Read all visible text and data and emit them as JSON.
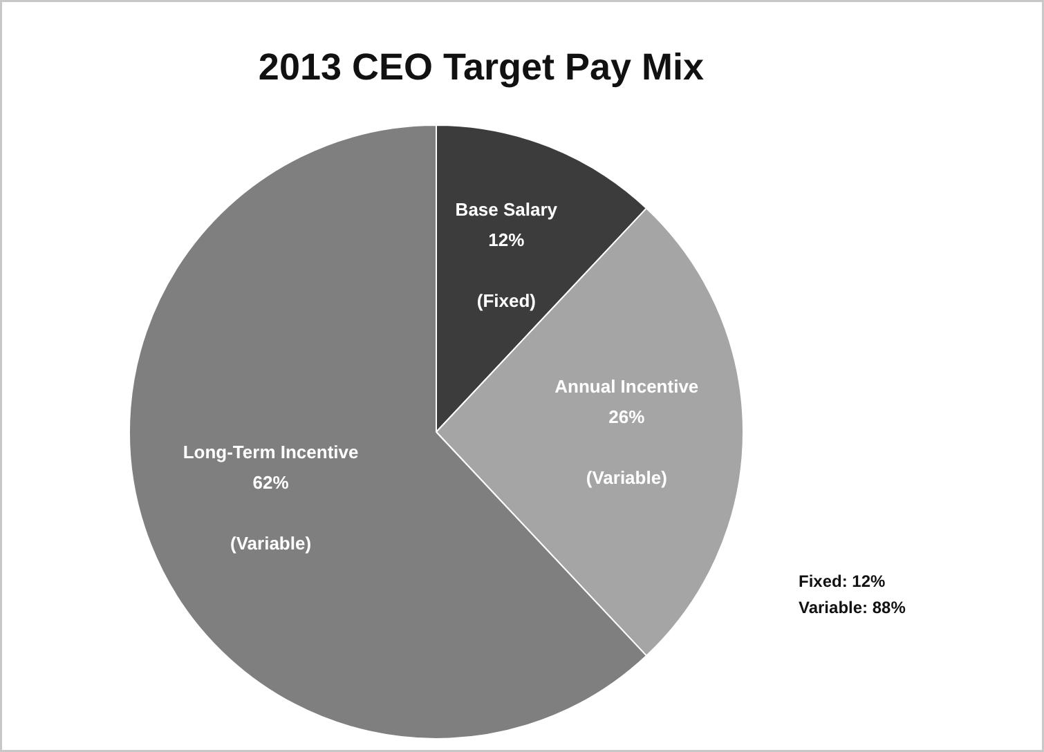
{
  "chart_data": {
    "type": "pie",
    "title": "2013 CEO Target Pay Mix",
    "categories": [
      "Base Salary",
      "Annual Incentive",
      "Long-Term Incentive"
    ],
    "values": [
      12,
      26,
      62
    ],
    "colors": [
      "#3c3c3c",
      "#a5a5a5",
      "#7f7f7f"
    ],
    "value_labels": [
      "12%",
      "26%",
      "62%"
    ],
    "annotations": [
      {
        "text": "(Fixed)",
        "x": "Base Salary"
      },
      {
        "text": "(Variable)",
        "x": "Annual Incentive"
      },
      {
        "text": "(Variable)",
        "x": "Long-Term Incentive"
      },
      "Fixed: 12%",
      "Variable: 88%"
    ],
    "legend": false
  }
}
